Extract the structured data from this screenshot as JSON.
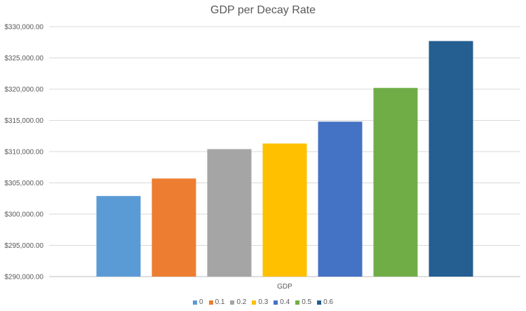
{
  "chart_data": {
    "type": "bar",
    "title": "GDP per Decay Rate",
    "xlabel": "GDP",
    "ylabel": "",
    "categories": [
      "GDP"
    ],
    "series": [
      {
        "name": "0",
        "values": [
          302900
        ],
        "color": "#5B9BD5"
      },
      {
        "name": "0.1",
        "values": [
          305700
        ],
        "color": "#ED7D31"
      },
      {
        "name": "0.2",
        "values": [
          310400
        ],
        "color": "#A5A5A5"
      },
      {
        "name": "0.3",
        "values": [
          311300
        ],
        "color": "#FFC000"
      },
      {
        "name": "0.4",
        "values": [
          314800
        ],
        "color": "#4472C4"
      },
      {
        "name": "0.5",
        "values": [
          320200
        ],
        "color": "#70AD47"
      },
      {
        "name": "0.6",
        "values": [
          327700
        ],
        "color": "#255E91"
      }
    ],
    "ylim": [
      290000,
      330000
    ],
    "yticks": [
      "$290,000.00",
      "$295,000.00",
      "$300,000.00",
      "$305,000.00",
      "$310,000.00",
      "$315,000.00",
      "$320,000.00",
      "$325,000.00",
      "$330,000.00"
    ],
    "grid": true,
    "legend": "bottom"
  }
}
